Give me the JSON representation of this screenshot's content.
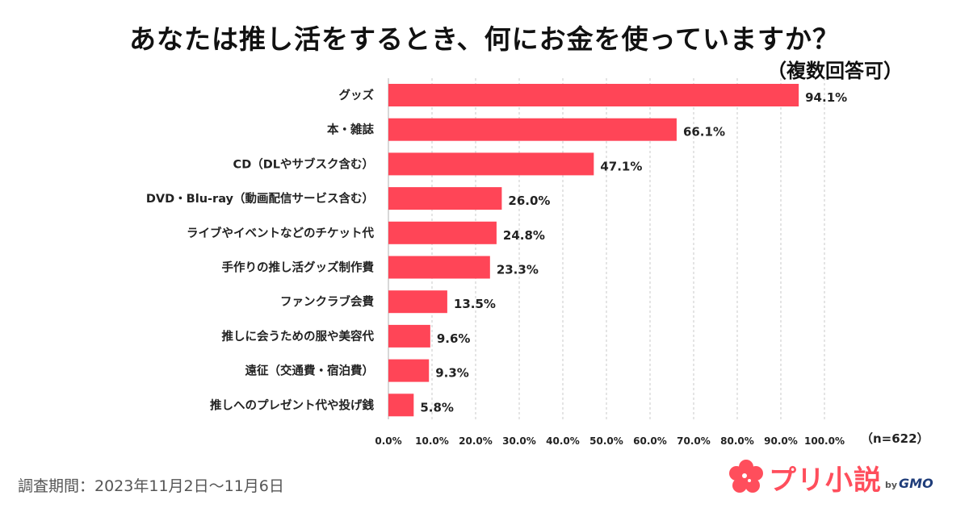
{
  "header": {
    "title": "あなたは推し活をするとき、何にお金を使っていますか？",
    "subtitle": "（複数回答可）"
  },
  "chart_data": {
    "type": "bar",
    "orientation": "horizontal",
    "title": "あなたは推し活をするとき、何にお金を使っていますか？",
    "subtitle": "（複数回答可）",
    "categories": [
      "グッズ",
      "本・雑誌",
      "CD（DLやサブスク含む）",
      "DVD・Blu-ray（動画配信サービス含む）",
      "ライブやイベントなどのチケット代",
      "手作りの推し活グッズ制作費",
      "ファンクラブ会費",
      "推しに会うための服や美容代",
      "遠征（交通費・宿泊費）",
      "推しへのプレゼント代や投げ銭"
    ],
    "values": [
      94.1,
      66.1,
      47.1,
      26.0,
      24.8,
      23.3,
      13.5,
      9.6,
      9.3,
      5.8
    ],
    "value_labels": [
      "94.1%",
      "66.1%",
      "47.1%",
      "26.0%",
      "24.8%",
      "23.3%",
      "13.5%",
      "9.6%",
      "9.3%",
      "5.8%"
    ],
    "xlim": [
      0,
      100
    ],
    "xticks": [
      0,
      10,
      20,
      30,
      40,
      50,
      60,
      70,
      80,
      90,
      100
    ],
    "xtick_labels": [
      "0.0%",
      "10.0%",
      "20.0%",
      "30.0%",
      "40.0%",
      "50.0%",
      "60.0%",
      "70.0%",
      "80.0%",
      "90.0%",
      "100.0%"
    ],
    "bar_color": "#ff4557",
    "grid": true,
    "sample_size": "（n=622）"
  },
  "footer": {
    "survey_period": "調査期間：2023年11月2日～11月6日",
    "brand_name": "プリ小説",
    "brand_by": "by",
    "brand_company": "GMO",
    "brand_icon": "flower-logo-icon",
    "brand_color": "#ff4e5c"
  }
}
